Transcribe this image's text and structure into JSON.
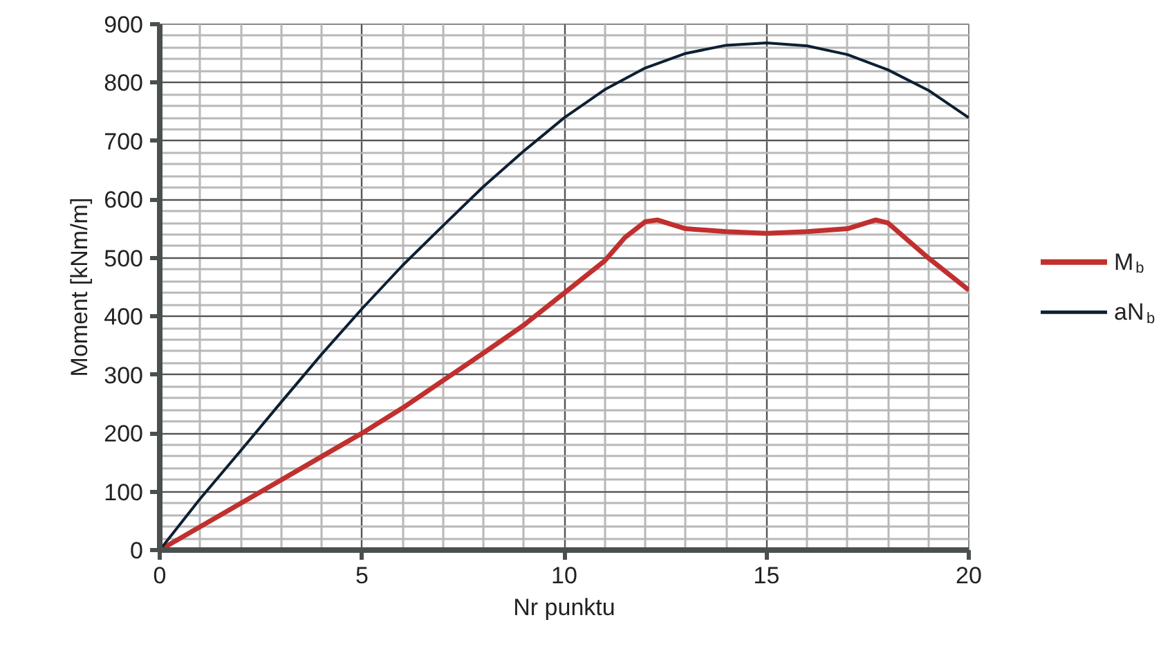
{
  "chart_data": {
    "type": "line",
    "xlabel": "Nr punktu",
    "ylabel": "Moment [kNm/m]",
    "xlim": [
      0,
      20
    ],
    "xticks": [
      0,
      5,
      10,
      15,
      20
    ],
    "ylim": [
      0,
      900
    ],
    "yticks": [
      0,
      100,
      200,
      300,
      400,
      500,
      600,
      700,
      800,
      900
    ],
    "grid": true,
    "legend": "right",
    "marker": "none",
    "line_style": "solid",
    "series": [
      {
        "name": "M$_{b}$",
        "color": "#c0302f",
        "x": [
          0,
          1,
          2,
          3,
          4,
          5,
          6,
          7,
          8,
          9,
          10,
          11,
          11.5,
          12,
          12.3,
          13,
          14,
          15,
          16,
          17,
          17.7,
          18,
          19,
          20
        ],
        "values": [
          0,
          40,
          80,
          120,
          160,
          200,
          243,
          290,
          337,
          385,
          440,
          495,
          535,
          562,
          565,
          550,
          545,
          542,
          545,
          550,
          565,
          560,
          500,
          445
        ]
      },
      {
        "name": "aN$_{b}$",
        "color": "#0d1f33",
        "x": [
          0,
          1,
          2,
          3,
          4,
          5,
          6,
          7,
          8,
          9,
          10,
          11,
          12,
          13,
          14,
          15,
          16,
          17,
          18,
          19,
          20
        ],
        "values": [
          0,
          88,
          170,
          253,
          335,
          413,
          487,
          555,
          622,
          683,
          740,
          788,
          825,
          850,
          864,
          868,
          863,
          848,
          822,
          787,
          740
        ]
      }
    ]
  }
}
